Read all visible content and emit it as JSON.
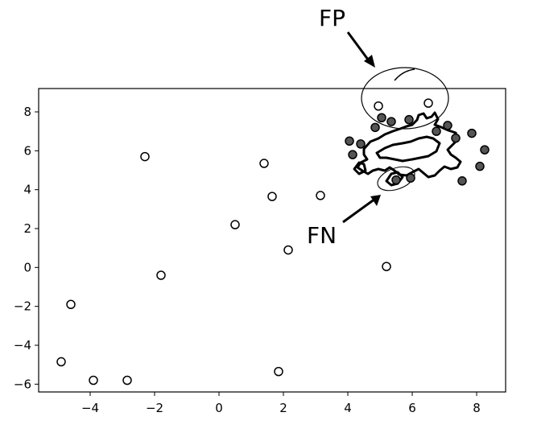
{
  "chart_data": {
    "type": "scatter",
    "xlim": [
      -5.6,
      8.9
    ],
    "ylim": [
      -6.4,
      9.2
    ],
    "xticks": [
      -4,
      -2,
      0,
      2,
      4,
      6,
      8
    ],
    "yticks": [
      -6,
      -4,
      -2,
      0,
      2,
      4,
      6,
      8
    ],
    "xtick_labels": [
      "−4",
      "−2",
      "0",
      "2",
      "4",
      "6",
      "8"
    ],
    "ytick_labels": [
      "−6",
      "−4",
      "−2",
      "0",
      "2",
      "4",
      "6",
      "8"
    ],
    "grid": false,
    "open_points": {
      "x": [
        -4.9,
        -4.6,
        -3.9,
        -2.85,
        -2.3,
        -1.8,
        0.5,
        1.4,
        1.65,
        1.85,
        2.15,
        3.15,
        5.2,
        4.95,
        6.5
      ],
      "y": [
        -4.85,
        -1.9,
        -5.8,
        -5.8,
        5.7,
        -0.4,
        2.2,
        5.35,
        3.65,
        -5.35,
        0.9,
        3.7,
        0.05,
        8.3,
        8.45
      ]
    },
    "filled_points": {
      "x": [
        4.05,
        4.15,
        4.4,
        4.85,
        5.05,
        5.35,
        5.9,
        6.75,
        7.1,
        7.35,
        7.55,
        7.85,
        8.1,
        8.25,
        5.95,
        5.5
      ],
      "y": [
        6.5,
        5.8,
        6.35,
        7.2,
        7.7,
        7.5,
        7.6,
        7.0,
        7.3,
        6.65,
        4.45,
        6.9,
        5.2,
        6.05,
        4.6,
        4.5
      ]
    },
    "annotations": [
      {
        "text": "FP",
        "target": "false-positive region"
      },
      {
        "text": "FN",
        "target": "false-negative region"
      }
    ]
  }
}
